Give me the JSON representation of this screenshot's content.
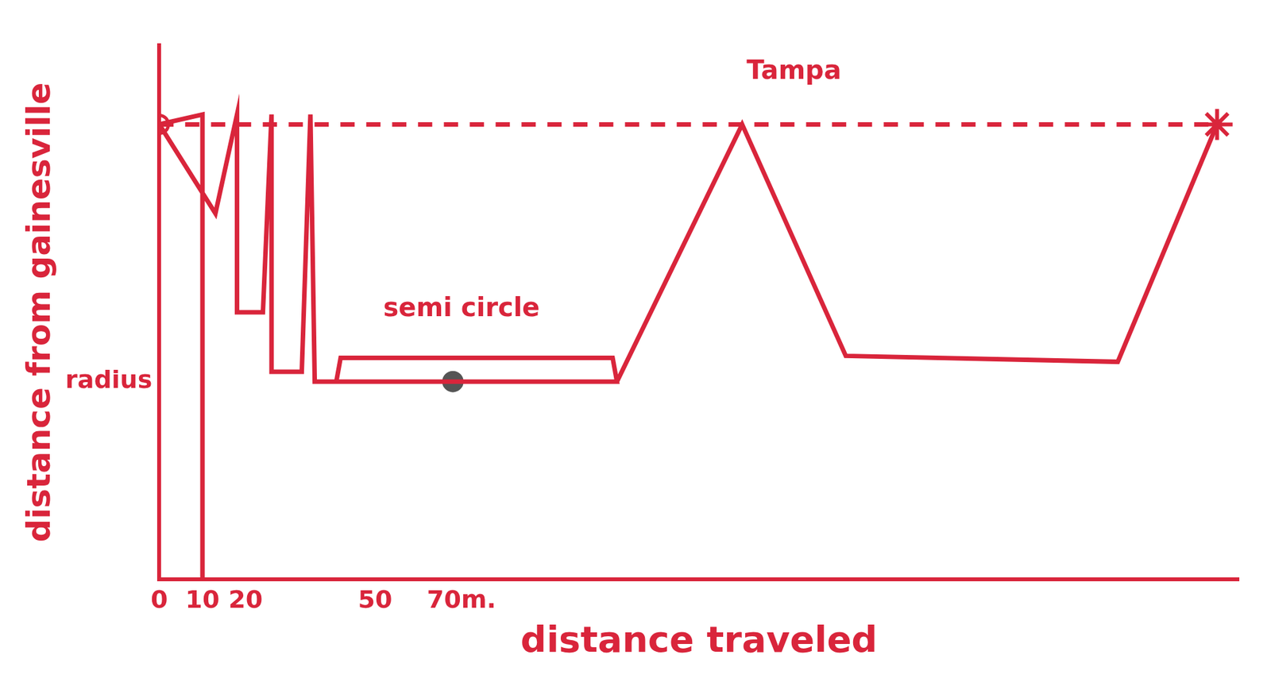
{
  "chart_data": {
    "type": "line",
    "x_label": "distance traveled",
    "y_label": "distance from gainesville",
    "xlim": [
      0,
      250
    ],
    "xticks": [
      0,
      10,
      20,
      50,
      {
        "value": 70,
        "label": "70m."
      }
    ],
    "ylim": [
      0,
      2.7
    ],
    "yticks": [
      {
        "value": 1,
        "label": "radius"
      }
    ],
    "grid": false,
    "series": [
      {
        "type": "line",
        "color": "#d9253b",
        "marker": "none",
        "line_style": "solid",
        "x": [
          10,
          10,
          0,
          13,
          18,
          18,
          24,
          26,
          26,
          33,
          35,
          36,
          41,
          42,
          105,
          106,
          41,
          106,
          135,
          159,
          222,
          245
        ],
        "values": [
          0,
          2.35,
          2.3,
          1.85,
          2.35,
          1.35,
          1.35,
          2.35,
          1.05,
          1.05,
          2.35,
          1.0,
          1.0,
          1.12,
          1.12,
          1.0,
          1.0,
          1.0,
          2.3,
          1.13,
          1.1,
          2.3
        ]
      },
      {
        "type": "line",
        "color": "#d9253b",
        "marker": "none",
        "line_style": "dashed",
        "x": [
          0,
          245
        ],
        "values": [
          2.3,
          2.3
        ]
      },
      {
        "type": "scatter",
        "color": "#d9253b",
        "marker": "circle",
        "x": [
          0
        ],
        "values": [
          2.3
        ]
      },
      {
        "type": "scatter",
        "color": "#d9253b",
        "marker": "star",
        "x": [
          245
        ],
        "values": [
          2.3
        ]
      },
      {
        "type": "scatter",
        "color": "#555555",
        "marker": "circle",
        "x": [
          68
        ],
        "values": [
          1.0
        ]
      }
    ],
    "annotations": [
      {
        "text": "semi circle",
        "x": 70,
        "y": 1.3
      },
      {
        "text": "Tampa",
        "x": 147,
        "y": 2.5
      }
    ]
  }
}
